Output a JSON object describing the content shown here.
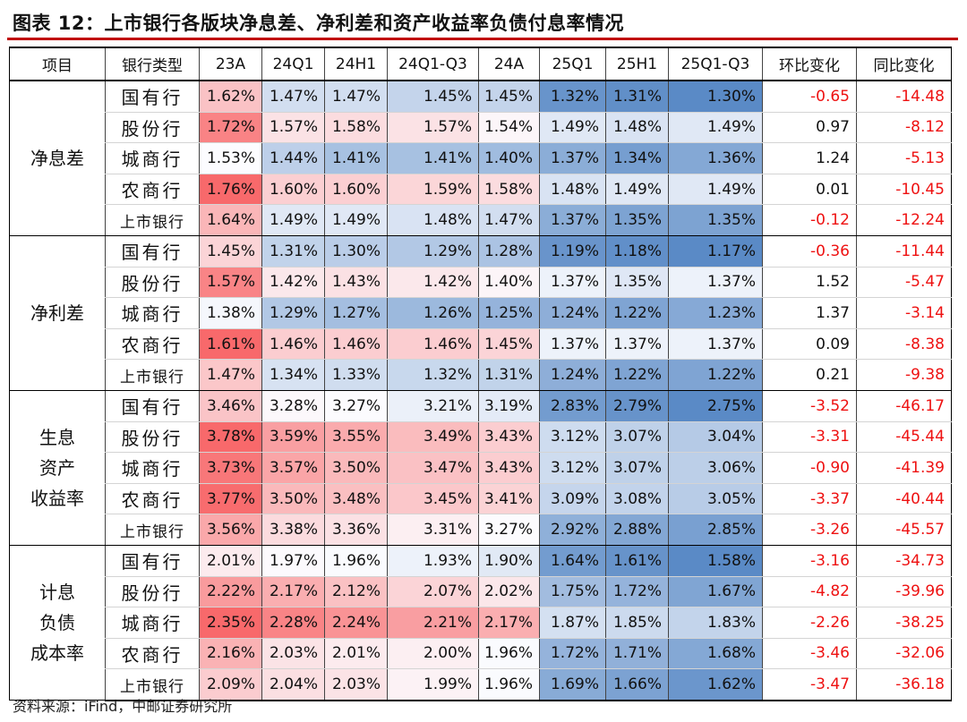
{
  "title": "图表 12：上市银行各版块净息差、净利差和资产收益率负债付息率情况",
  "source": "资料来源：iFind，中邮证券研究所",
  "columns": [
    "项目",
    "银行类型",
    "23A",
    "24Q1",
    "24H1",
    "24Q1-Q3",
    "24A",
    "25Q1",
    "25H1",
    "25Q1-Q3",
    "环比变化",
    "同比变化"
  ],
  "groups": [
    {
      "metric": "净息差",
      "rows": [
        {
          "bank": "国有行",
          "values": [
            "1.62%",
            "1.47%",
            "1.47%",
            "1.45%",
            "1.45%",
            "1.32%",
            "1.31%",
            "1.30%"
          ],
          "qoq": "-0.65",
          "yoy": "-14.48"
        },
        {
          "bank": "股份行",
          "values": [
            "1.72%",
            "1.57%",
            "1.58%",
            "1.57%",
            "1.54%",
            "1.49%",
            "1.48%",
            "1.49%"
          ],
          "qoq": "0.97",
          "yoy": "-8.12"
        },
        {
          "bank": "城商行",
          "values": [
            "1.53%",
            "1.44%",
            "1.41%",
            "1.41%",
            "1.40%",
            "1.37%",
            "1.34%",
            "1.36%"
          ],
          "qoq": "1.24",
          "yoy": "-5.13"
        },
        {
          "bank": "农商行",
          "values": [
            "1.76%",
            "1.60%",
            "1.60%",
            "1.59%",
            "1.58%",
            "1.48%",
            "1.49%",
            "1.49%"
          ],
          "qoq": "0.01",
          "yoy": "-10.45"
        },
        {
          "bank": "上市银行",
          "values": [
            "1.64%",
            "1.49%",
            "1.49%",
            "1.48%",
            "1.47%",
            "1.37%",
            "1.35%",
            "1.35%"
          ],
          "qoq": "-0.12",
          "yoy": "-12.24"
        }
      ]
    },
    {
      "metric": "净利差",
      "rows": [
        {
          "bank": "国有行",
          "values": [
            "1.45%",
            "1.31%",
            "1.30%",
            "1.29%",
            "1.28%",
            "1.19%",
            "1.18%",
            "1.17%"
          ],
          "qoq": "-0.36",
          "yoy": "-11.44"
        },
        {
          "bank": "股份行",
          "values": [
            "1.57%",
            "1.42%",
            "1.43%",
            "1.42%",
            "1.40%",
            "1.37%",
            "1.35%",
            "1.37%"
          ],
          "qoq": "1.52",
          "yoy": "-5.47"
        },
        {
          "bank": "城商行",
          "values": [
            "1.38%",
            "1.29%",
            "1.27%",
            "1.26%",
            "1.25%",
            "1.24%",
            "1.22%",
            "1.23%"
          ],
          "qoq": "1.37",
          "yoy": "-3.14"
        },
        {
          "bank": "农商行",
          "values": [
            "1.61%",
            "1.46%",
            "1.46%",
            "1.46%",
            "1.45%",
            "1.37%",
            "1.37%",
            "1.37%"
          ],
          "qoq": "0.09",
          "yoy": "-8.38"
        },
        {
          "bank": "上市银行",
          "values": [
            "1.47%",
            "1.34%",
            "1.33%",
            "1.32%",
            "1.31%",
            "1.24%",
            "1.22%",
            "1.22%"
          ],
          "qoq": "0.21",
          "yoy": "-9.38"
        }
      ]
    },
    {
      "metric": "生息\n资产\n收益率",
      "rows": [
        {
          "bank": "国有行",
          "values": [
            "3.46%",
            "3.28%",
            "3.27%",
            "3.21%",
            "3.19%",
            "2.83%",
            "2.79%",
            "2.75%"
          ],
          "qoq": "-3.52",
          "yoy": "-46.17"
        },
        {
          "bank": "股份行",
          "values": [
            "3.78%",
            "3.59%",
            "3.55%",
            "3.49%",
            "3.43%",
            "3.12%",
            "3.07%",
            "3.04%"
          ],
          "qoq": "-3.31",
          "yoy": "-45.44"
        },
        {
          "bank": "城商行",
          "values": [
            "3.73%",
            "3.57%",
            "3.50%",
            "3.47%",
            "3.43%",
            "3.12%",
            "3.07%",
            "3.06%"
          ],
          "qoq": "-0.90",
          "yoy": "-41.39"
        },
        {
          "bank": "农商行",
          "values": [
            "3.77%",
            "3.50%",
            "3.48%",
            "3.45%",
            "3.41%",
            "3.09%",
            "3.08%",
            "3.05%"
          ],
          "qoq": "-3.37",
          "yoy": "-40.44"
        },
        {
          "bank": "上市银行",
          "values": [
            "3.56%",
            "3.38%",
            "3.36%",
            "3.31%",
            "3.27%",
            "2.92%",
            "2.88%",
            "2.85%"
          ],
          "qoq": "-3.26",
          "yoy": "-45.57"
        }
      ]
    },
    {
      "metric": "计息\n负债\n成本率",
      "rows": [
        {
          "bank": "国有行",
          "values": [
            "2.01%",
            "1.97%",
            "1.96%",
            "1.93%",
            "1.90%",
            "1.64%",
            "1.61%",
            "1.58%"
          ],
          "qoq": "-3.16",
          "yoy": "-34.73"
        },
        {
          "bank": "股份行",
          "values": [
            "2.22%",
            "2.17%",
            "2.12%",
            "2.07%",
            "2.02%",
            "1.75%",
            "1.72%",
            "1.67%"
          ],
          "qoq": "-4.82",
          "yoy": "-39.96"
        },
        {
          "bank": "城商行",
          "values": [
            "2.35%",
            "2.28%",
            "2.24%",
            "2.21%",
            "2.17%",
            "1.87%",
            "1.85%",
            "1.83%"
          ],
          "qoq": "-2.26",
          "yoy": "-38.25"
        },
        {
          "bank": "农商行",
          "values": [
            "2.16%",
            "2.03%",
            "2.01%",
            "2.00%",
            "1.96%",
            "1.72%",
            "1.71%",
            "1.68%"
          ],
          "qoq": "-3.46",
          "yoy": "-32.06"
        },
        {
          "bank": "上市银行",
          "values": [
            "2.09%",
            "2.04%",
            "2.03%",
            "1.99%",
            "1.96%",
            "1.69%",
            "1.66%",
            "1.62%"
          ],
          "qoq": "-3.47",
          "yoy": "-36.18"
        }
      ]
    }
  ],
  "colors": {
    "title_rule": "#c00000",
    "high": "#f8696b",
    "mid": "#fcfcff",
    "low": "#5a8ac6",
    "negative_text": "#ee1111"
  }
}
